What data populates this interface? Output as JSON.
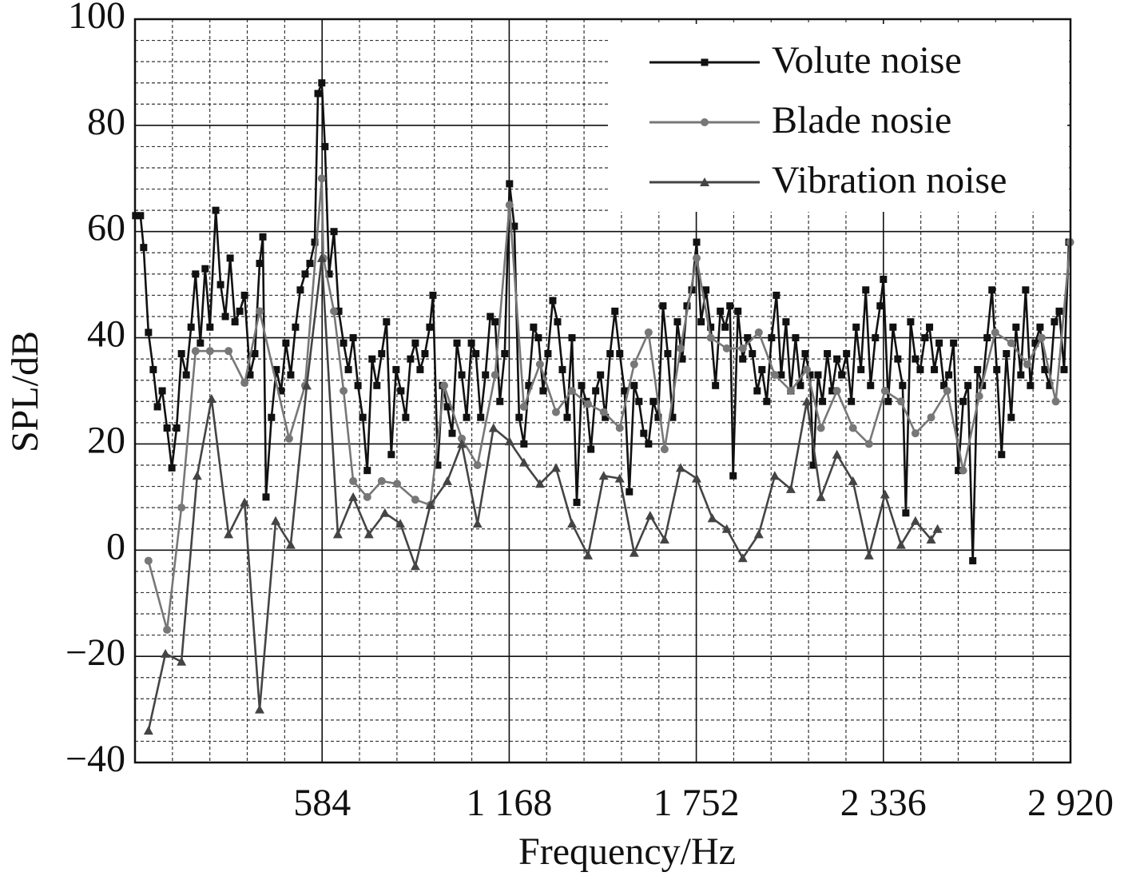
{
  "chart_data": {
    "type": "line",
    "xlabel": "Frequency/Hz",
    "ylabel": "SPL/dB",
    "xlim": [
      0,
      2920
    ],
    "ylim": [
      -40,
      100
    ],
    "xticks": [
      584,
      {
        "value": 1168,
        "label": "1 168"
      },
      {
        "value": 1752,
        "label": "1 752"
      },
      {
        "value": 2336,
        "label": "2 336"
      },
      {
        "value": 2920,
        "label": "2 920"
      }
    ],
    "yticks": [
      {
        "value": -40,
        "label": "−40"
      },
      {
        "value": -20,
        "label": "−20"
      },
      0,
      20,
      40,
      60,
      80,
      100
    ],
    "grid": true,
    "legend": "upper right",
    "series": [
      {
        "name": "Volute noise",
        "color": "#111111",
        "marker": "square",
        "x": [
          2,
          17,
          27,
          42,
          57,
          70,
          85,
          100,
          115,
          130,
          145,
          160,
          175,
          189,
          204,
          219,
          234,
          252,
          267,
          282,
          297,
          312,
          327,
          342,
          359,
          374,
          389,
          399,
          409,
          426,
          441,
          456,
          471,
          486,
          501,
          516,
          531,
          546,
          561,
          571,
          583,
          593,
          606,
          621,
          636,
          651,
          666,
          681,
          696,
          711,
          725,
          740,
          755,
          770,
          785,
          800,
          815,
          830,
          845,
          860,
          875,
          890,
          905,
          920,
          930,
          945,
          960,
          975,
          990,
          1005,
          1020,
          1035,
          1050,
          1064,
          1079,
          1094,
          1109,
          1124,
          1139,
          1154,
          1169,
          1184,
          1199,
          1214,
          1229,
          1244,
          1259,
          1274,
          1289,
          1304,
          1319,
          1334,
          1349,
          1364,
          1379,
          1394,
          1409,
          1423,
          1438,
          1453,
          1468,
          1483,
          1498,
          1513,
          1528,
          1543,
          1558,
          1573,
          1588,
          1603,
          1618,
          1633,
          1648,
          1663,
          1678,
          1693,
          1708,
          1723,
          1738,
          1753,
          1767,
          1782,
          1797,
          1812,
          1827,
          1842,
          1857,
          1867,
          1882,
          1897,
          1912,
          1927,
          1942,
          1957,
          1972,
          1987,
          2002,
          2017,
          2032,
          2047,
          2062,
          2077,
          2092,
          2107,
          2117,
          2132,
          2146,
          2161,
          2176,
          2191,
          2206,
          2221,
          2236,
          2251,
          2266,
          2281,
          2296,
          2311,
          2326,
          2336,
          2351,
          2366,
          2381,
          2396,
          2406,
          2421,
          2436,
          2451,
          2466,
          2480,
          2495,
          2510,
          2525,
          2540,
          2555,
          2570,
          2585,
          2600,
          2615,
          2630,
          2645,
          2660,
          2675,
          2690,
          2705,
          2720,
          2735,
          2750,
          2765,
          2780,
          2795,
          2810,
          2825,
          2840,
          2855,
          2870,
          2885,
          2900,
          2915
        ],
        "values": [
          63,
          63,
          57,
          41,
          34,
          27,
          30,
          23,
          15.5,
          23,
          37,
          33,
          42,
          52,
          39,
          53,
          42,
          64,
          50,
          44,
          55,
          43,
          45,
          48,
          33,
          37,
          54,
          59,
          10,
          25,
          34,
          30,
          39,
          33,
          42,
          49,
          52,
          54,
          58,
          86,
          88,
          76,
          52,
          60,
          45,
          39,
          34,
          40,
          31,
          25,
          15,
          36,
          31,
          37,
          43,
          18,
          34,
          30,
          25,
          36,
          39,
          34,
          37,
          42,
          48,
          16,
          31,
          27,
          22,
          39,
          33,
          25,
          39,
          37,
          25,
          33,
          44,
          43,
          28,
          37,
          69,
          61,
          25,
          20,
          31,
          42,
          40,
          30,
          37,
          47,
          43,
          34,
          25,
          40,
          9,
          31,
          28,
          19,
          30,
          33,
          25,
          37,
          45,
          37,
          30,
          11,
          31,
          28,
          22,
          20,
          28,
          25,
          46,
          37,
          25,
          43,
          36,
          46,
          49,
          58,
          43,
          49,
          42,
          31,
          45,
          42,
          46,
          14,
          45,
          36,
          40,
          37,
          30,
          34,
          28,
          40,
          48,
          33,
          43,
          30,
          40,
          31,
          37,
          33,
          16,
          33,
          28,
          37,
          30,
          36,
          33,
          37,
          28,
          42,
          34,
          49,
          31,
          40,
          46,
          51,
          28,
          42,
          36,
          31,
          7,
          43,
          36,
          34,
          40,
          42,
          34,
          39,
          31,
          33,
          39,
          15,
          28,
          31,
          -2,
          34,
          31,
          40,
          49,
          34,
          18,
          37,
          25,
          42,
          33,
          49,
          31,
          39,
          42,
          34,
          31,
          43,
          45,
          34,
          58
        ]
      },
      {
        "name": "Blade nosie",
        "color": "#777777",
        "marker": "circle",
        "x": [
          42,
          100,
          145,
          189,
          234,
          292,
          342,
          389,
          481,
          531,
          583,
          588,
          621,
          651,
          681,
          725,
          770,
          818,
          875,
          922,
          965,
          1020,
          1069,
          1124,
          1169,
          1214,
          1264,
          1314,
          1364,
          1414,
          1463,
          1513,
          1558,
          1603,
          1653,
          1703,
          1753,
          1797,
          1847,
          1897,
          1947,
          1997,
          2047,
          2097,
          2141,
          2191,
          2241,
          2291,
          2341,
          2391,
          2436,
          2485,
          2535,
          2585,
          2635,
          2685,
          2735,
          2785,
          2830,
          2874,
          2919
        ],
        "values": [
          -2,
          -15,
          8,
          37.5,
          37.5,
          37.5,
          31.5,
          45,
          21,
          31,
          70,
          55,
          45,
          30,
          13,
          10,
          13,
          12.5,
          9.5,
          8.5,
          31,
          21,
          16,
          33,
          65,
          27,
          35,
          26,
          30,
          27.5,
          26,
          23,
          35,
          41,
          19,
          38,
          55,
          40,
          38,
          38,
          41,
          33,
          30,
          34,
          23,
          30,
          23,
          20,
          30,
          28,
          22,
          25,
          30,
          15,
          29,
          41,
          39,
          35,
          40,
          28,
          58
        ]
      },
      {
        "name": "Vibration noise",
        "color": "#444444",
        "marker": "triangle",
        "x": [
          42,
          95,
          145,
          194,
          239,
          292,
          342,
          389,
          439,
          486,
          536,
          583,
          633,
          681,
          730,
          780,
          828,
          875,
          922,
          975,
          1020,
          1069,
          1119,
          1169,
          1214,
          1264,
          1314,
          1364,
          1414,
          1463,
          1513,
          1558,
          1608,
          1653,
          1703,
          1753,
          1802,
          1847,
          1897,
          1947,
          1997,
          2047,
          2097,
          2141,
          2191,
          2241,
          2291,
          2341,
          2391,
          2436,
          2485,
          2505
        ],
        "values": [
          -34,
          -19.5,
          -21,
          14,
          28.5,
          3,
          9,
          -30,
          5.5,
          1,
          31,
          55,
          3,
          10,
          3,
          7,
          5,
          -3,
          8.5,
          13,
          20,
          5,
          23,
          20.5,
          16.5,
          12.5,
          15.5,
          5,
          -1,
          14,
          13.5,
          -0.5,
          6.5,
          2,
          15.5,
          13.5,
          6,
          4,
          -1.5,
          3,
          14,
          11.5,
          28,
          10,
          18,
          13,
          -1,
          10.5,
          1,
          5.5,
          2,
          4
        ]
      }
    ]
  }
}
